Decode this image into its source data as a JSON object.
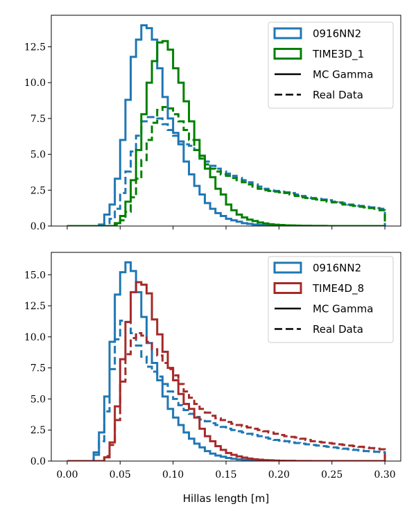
{
  "chart_data": [
    {
      "type": "histogram",
      "xlim": [
        -0.015,
        0.315
      ],
      "ylim": [
        0,
        14.7
      ],
      "xlabel": "",
      "ylabel": "",
      "yticks": [
        0.0,
        2.5,
        5.0,
        7.5,
        10.0,
        12.5
      ],
      "ytick_labels": [
        "0.0",
        "2.5",
        "5.0",
        "7.5",
        "10.0",
        "12.5"
      ],
      "xticks": [
        0.0,
        0.05,
        0.1,
        0.15,
        0.2,
        0.25,
        0.3
      ],
      "xtick_labels_visible": false,
      "bin_width": 0.005,
      "bins": [
        0.0,
        0.3
      ],
      "legend": {
        "placement": "top-right",
        "entries": [
          {
            "label": "0916NN2",
            "kind": "patch",
            "color": "#1f77b4"
          },
          {
            "label": "TIME3D_1",
            "kind": "patch",
            "color": "#008000"
          },
          {
            "label": "MC Gamma",
            "kind": "line",
            "style": "solid",
            "color": "#000000"
          },
          {
            "label": "Real Data",
            "kind": "line",
            "style": "dashed",
            "color": "#000000"
          }
        ]
      },
      "series": [
        {
          "name": "0916NN2",
          "sample": "MC Gamma",
          "color": "#1f77b4",
          "style": "solid",
          "values": [
            0,
            0,
            0,
            0,
            0,
            0,
            0.1,
            0.8,
            1.5,
            3.3,
            6.0,
            8.8,
            11.8,
            13.0,
            14.0,
            13.8,
            13.0,
            11.0,
            9.0,
            7.5,
            6.5,
            5.7,
            4.5,
            3.6,
            2.8,
            2.2,
            1.6,
            1.2,
            0.9,
            0.7,
            0.5,
            0.4,
            0.3,
            0.2,
            0.15,
            0.1,
            0.08,
            0.05,
            0.04,
            0.03,
            0.02,
            0.02,
            0.01,
            0.01,
            0.01,
            0.01,
            0,
            0,
            0,
            0,
            0,
            0,
            0,
            0,
            0,
            0,
            0,
            0,
            0,
            0
          ]
        },
        {
          "name": "0916NN2",
          "sample": "Real Data",
          "color": "#1f77b4",
          "style": "dashed",
          "values": [
            0,
            0,
            0,
            0,
            0,
            0,
            0.05,
            0.2,
            0.5,
            1.2,
            2.3,
            3.8,
            5.2,
            6.3,
            7.3,
            7.6,
            7.6,
            7.5,
            7.1,
            6.7,
            6.3,
            5.9,
            5.7,
            5.6,
            5.3,
            4.9,
            4.5,
            4.2,
            4.0,
            3.8,
            3.65,
            3.5,
            3.35,
            3.2,
            3.05,
            2.9,
            2.75,
            2.6,
            2.5,
            2.45,
            2.4,
            2.35,
            2.3,
            2.2,
            2.1,
            2.0,
            1.95,
            1.9,
            1.85,
            1.8,
            1.7,
            1.65,
            1.6,
            1.5,
            1.45,
            1.4,
            1.35,
            1.3,
            1.25,
            1.2
          ]
        },
        {
          "name": "TIME3D_1",
          "sample": "MC Gamma",
          "color": "#008000",
          "style": "solid",
          "values": [
            0,
            0,
            0,
            0,
            0,
            0,
            0,
            0,
            0,
            0.2,
            0.7,
            1.7,
            3.2,
            5.3,
            7.8,
            10.0,
            11.5,
            12.8,
            12.9,
            12.3,
            11.0,
            10.0,
            8.7,
            7.3,
            6.0,
            4.9,
            4.0,
            3.4,
            2.6,
            2.2,
            1.5,
            1.1,
            0.8,
            0.6,
            0.45,
            0.35,
            0.25,
            0.18,
            0.12,
            0.09,
            0.07,
            0.05,
            0.04,
            0.03,
            0.02,
            0.02,
            0.01,
            0.01,
            0.01,
            0,
            0,
            0,
            0,
            0,
            0,
            0,
            0,
            0,
            0,
            0
          ]
        },
        {
          "name": "TIME3D_1",
          "sample": "Real Data",
          "color": "#008000",
          "style": "dashed",
          "values": [
            0,
            0,
            0,
            0,
            0,
            0,
            0,
            0,
            0,
            0.1,
            0.4,
            1.0,
            2.0,
            3.3,
            4.6,
            6.0,
            7.2,
            8.1,
            8.3,
            8.2,
            7.8,
            7.3,
            6.7,
            6.0,
            5.3,
            4.7,
            4.3,
            4.0,
            3.8,
            3.6,
            3.5,
            3.35,
            3.2,
            3.05,
            2.9,
            2.75,
            2.6,
            2.5,
            2.45,
            2.4,
            2.35,
            2.3,
            2.2,
            2.1,
            2.0,
            1.95,
            1.9,
            1.85,
            1.8,
            1.7,
            1.65,
            1.6,
            1.5,
            1.45,
            1.4,
            1.35,
            1.3,
            1.25,
            1.2,
            1.1
          ]
        }
      ]
    },
    {
      "type": "histogram",
      "xlim": [
        -0.015,
        0.315
      ],
      "ylim": [
        0,
        16.8
      ],
      "xlabel": "Hillas length [m]",
      "ylabel": "",
      "yticks": [
        0.0,
        2.5,
        5.0,
        7.5,
        10.0,
        12.5,
        15.0
      ],
      "ytick_labels": [
        "0.0",
        "2.5",
        "5.0",
        "7.5",
        "10.0",
        "12.5",
        "15.0"
      ],
      "xticks": [
        0.0,
        0.05,
        0.1,
        0.15,
        0.2,
        0.25,
        0.3
      ],
      "xtick_labels": [
        "0.00",
        "0.05",
        "0.10",
        "0.15",
        "0.20",
        "0.25",
        "0.30"
      ],
      "xtick_labels_visible": true,
      "bin_width": 0.005,
      "bins": [
        0.0,
        0.3
      ],
      "legend": {
        "placement": "top-right",
        "entries": [
          {
            "label": "0916NN2",
            "kind": "patch",
            "color": "#1f77b4"
          },
          {
            "label": "TIME4D_8",
            "kind": "patch",
            "color": "#a52a2a"
          },
          {
            "label": "MC Gamma",
            "kind": "line",
            "style": "solid",
            "color": "#000000"
          },
          {
            "label": "Real Data",
            "kind": "line",
            "style": "dashed",
            "color": "#000000"
          }
        ]
      },
      "series": [
        {
          "name": "0916NN2",
          "sample": "MC Gamma",
          "color": "#1f77b4",
          "style": "solid",
          "values": [
            0,
            0,
            0,
            0,
            0,
            0.7,
            2.3,
            5.2,
            9.6,
            13.4,
            15.2,
            16.0,
            15.3,
            13.6,
            11.6,
            9.5,
            7.9,
            6.5,
            5.2,
            4.2,
            3.5,
            2.9,
            2.3,
            1.8,
            1.4,
            1.1,
            0.8,
            0.6,
            0.45,
            0.35,
            0.25,
            0.18,
            0.13,
            0.1,
            0.07,
            0.05,
            0.04,
            0.03,
            0.02,
            0.02,
            0.01,
            0.01,
            0.01,
            0,
            0,
            0,
            0,
            0,
            0,
            0,
            0,
            0,
            0,
            0,
            0,
            0,
            0,
            0,
            0,
            0
          ]
        },
        {
          "name": "0916NN2",
          "sample": "Real Data",
          "color": "#1f77b4",
          "style": "dashed",
          "values": [
            0,
            0,
            0,
            0,
            0,
            0.5,
            1.6,
            4.0,
            7.4,
            9.8,
            11.3,
            11.2,
            10.3,
            9.3,
            8.4,
            7.6,
            7.2,
            6.8,
            6.2,
            5.6,
            5.0,
            4.5,
            4.1,
            3.8,
            3.55,
            3.35,
            3.2,
            3.05,
            2.9,
            2.75,
            2.6,
            2.5,
            2.4,
            2.3,
            2.2,
            2.1,
            2.0,
            1.9,
            1.8,
            1.7,
            1.65,
            1.6,
            1.5,
            1.45,
            1.4,
            1.35,
            1.3,
            1.25,
            1.2,
            1.15,
            1.1,
            1.05,
            1.0,
            0.95,
            0.9,
            0.85,
            0.8,
            0.78,
            0.75,
            0.72
          ]
        },
        {
          "name": "TIME4D_8",
          "sample": "MC Gamma",
          "color": "#a52a2a",
          "style": "solid",
          "values": [
            0,
            0,
            0,
            0,
            0,
            0,
            0,
            0.3,
            1.5,
            4.4,
            8.2,
            11.2,
            13.6,
            14.4,
            14.2,
            13.5,
            11.4,
            10.2,
            8.8,
            7.5,
            6.5,
            5.4,
            4.6,
            4.2,
            3.5,
            2.6,
            2.0,
            1.6,
            1.2,
            0.9,
            0.65,
            0.5,
            0.38,
            0.28,
            0.2,
            0.15,
            0.11,
            0.08,
            0.06,
            0.04,
            0.03,
            0.02,
            0.02,
            0.01,
            0.01,
            0.01,
            0,
            0,
            0,
            0,
            0,
            0,
            0,
            0,
            0,
            0,
            0,
            0,
            0,
            0
          ]
        },
        {
          "name": "TIME4D_8",
          "sample": "Real Data",
          "color": "#a52a2a",
          "style": "dashed",
          "values": [
            0,
            0,
            0,
            0,
            0,
            0,
            0,
            0.4,
            1.3,
            3.3,
            6.4,
            8.6,
            9.9,
            10.3,
            10.1,
            9.6,
            9.0,
            8.5,
            7.9,
            7.4,
            6.9,
            6.2,
            5.6,
            5.1,
            4.6,
            4.2,
            3.9,
            3.65,
            3.45,
            3.3,
            3.15,
            3.0,
            2.9,
            2.8,
            2.7,
            2.6,
            2.5,
            2.4,
            2.3,
            2.2,
            2.1,
            2.0,
            1.95,
            1.9,
            1.8,
            1.7,
            1.6,
            1.55,
            1.5,
            1.45,
            1.4,
            1.35,
            1.3,
            1.25,
            1.2,
            1.15,
            1.1,
            1.05,
            1.0,
            0.95
          ]
        }
      ]
    }
  ]
}
